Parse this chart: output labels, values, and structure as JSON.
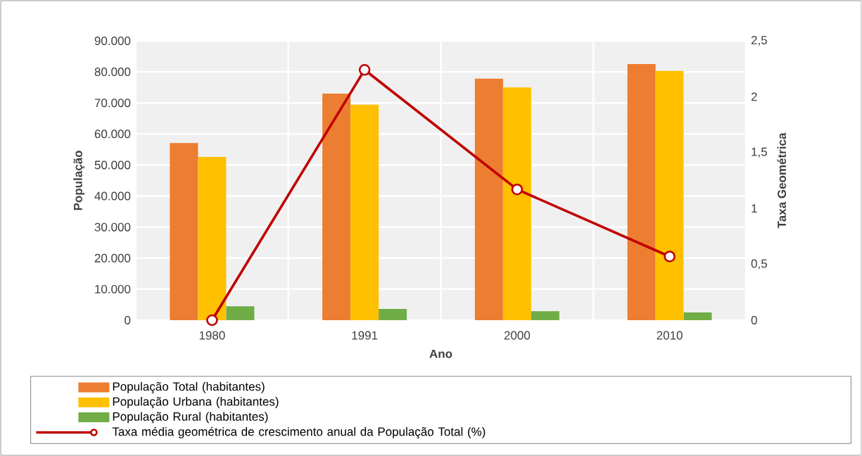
{
  "chart_data": {
    "type": "bar",
    "xlabel": "Ano",
    "ylabel": "População",
    "y2label": "Taxa Geométrica",
    "categories": [
      "1980",
      "1991",
      "2000",
      "2010"
    ],
    "series": [
      {
        "name": "População Total (habitantes)",
        "color": "#ed7d31",
        "values": [
          57100,
          73000,
          77800,
          82500
        ]
      },
      {
        "name": "População Urbana (habitantes)",
        "color": "#ffc000",
        "values": [
          52600,
          69400,
          75000,
          80300
        ]
      },
      {
        "name": "População Rural (habitantes)",
        "color": "#70ad47",
        "values": [
          4500,
          3600,
          2900,
          2500
        ]
      },
      {
        "name": "Taxa média geométrica de crescimento anual da População Total (%)",
        "type": "line",
        "axis": "y2",
        "color": "#c00000",
        "marker": "circle",
        "values": [
          0,
          2.24,
          1.17,
          0.57
        ]
      }
    ],
    "ylim": [
      0,
      90000
    ],
    "yticks": [
      {
        "value": 0,
        "label": "0"
      },
      {
        "value": 10000,
        "label": "10.000"
      },
      {
        "value": 20000,
        "label": "20.000"
      },
      {
        "value": 30000,
        "label": "30.000"
      },
      {
        "value": 40000,
        "label": "40.000"
      },
      {
        "value": 50000,
        "label": "50.000"
      },
      {
        "value": 60000,
        "label": "60.000"
      },
      {
        "value": 70000,
        "label": "70.000"
      },
      {
        "value": 80000,
        "label": "80.000"
      },
      {
        "value": 90000,
        "label": "90.000"
      }
    ],
    "y2lim": [
      0,
      2.5
    ],
    "y2ticks": [
      0,
      {
        "value": 0.5,
        "label": "0,5"
      },
      1,
      {
        "value": 1.5,
        "label": "1,5"
      },
      2,
      {
        "value": 2.5,
        "label": "2,5"
      }
    ],
    "grid": true,
    "legend": "bottom"
  }
}
